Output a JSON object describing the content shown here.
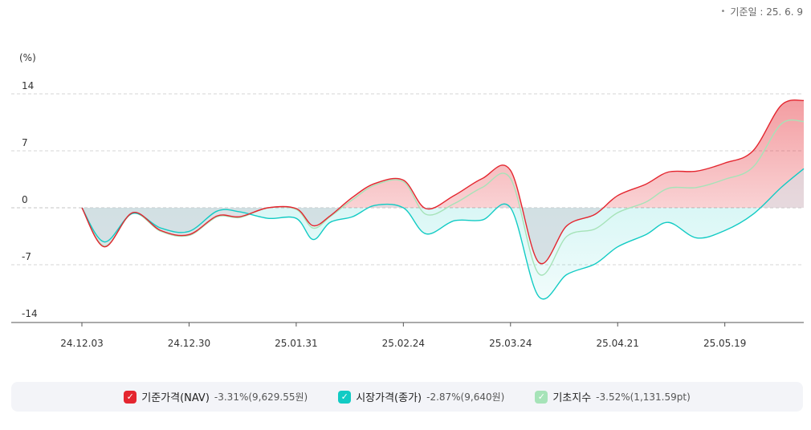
{
  "base_date": {
    "bullet": "•",
    "label": "기준일 : 25. 6. 9"
  },
  "legend": [
    {
      "name": "기준가격(NAV)",
      "value": "-3.31%(9,629.55원)",
      "color": "#e4262f",
      "icon": "check-icon"
    },
    {
      "name": "시장가격(종가)",
      "value": "-2.87%(9,640원)",
      "color": "#12cbc4",
      "icon": "check-icon"
    },
    {
      "name": "기초지수",
      "value": "-3.52%(1,131.59pt)",
      "color": "#a6e3b8",
      "icon": "check-icon"
    }
  ],
  "chart_data": {
    "type": "line",
    "ylabel": "(%)",
    "ylim": [
      -14,
      14
    ],
    "yticks": [
      "14",
      "7",
      "0",
      "-7",
      "-14"
    ],
    "ytick_values": [
      14,
      7,
      0,
      -7,
      -14
    ],
    "x_tick_labels": [
      "24.12.03",
      "24.12.30",
      "25.01.31",
      "25.02.24",
      "25.03.24",
      "25.04.21",
      "25.05.19"
    ],
    "x_tick_positions": [
      0,
      19,
      38,
      57,
      76,
      95,
      114
    ],
    "x_max": 128,
    "grid": "horizontal dashed",
    "series": [
      {
        "name": "기준가격(NAV)",
        "color": "#e4262f",
        "x": [
          0,
          4,
          9,
          14,
          19,
          24,
          28,
          33,
          38,
          41,
          44,
          48,
          52,
          57,
          61,
          66,
          71,
          76,
          81,
          86,
          91,
          95,
          100,
          104,
          109,
          114,
          119,
          124,
          128
        ],
        "y": [
          0,
          -4.8,
          -0.6,
          -2.8,
          -3.3,
          -1.0,
          -1.1,
          0.0,
          -0.1,
          -2.2,
          -1.0,
          1.3,
          3.0,
          3.4,
          -0.1,
          1.5,
          3.6,
          4.6,
          -6.7,
          -2.2,
          -0.8,
          1.5,
          2.9,
          4.4,
          4.5,
          5.5,
          7.0,
          12.6,
          13.2
        ]
      },
      {
        "name": "시장가격(종가)",
        "color": "#12cbc4",
        "x": [
          0,
          4,
          9,
          14,
          19,
          24,
          28,
          33,
          38,
          41,
          44,
          48,
          52,
          57,
          61,
          66,
          71,
          76,
          81,
          86,
          91,
          95,
          100,
          104,
          109,
          114,
          119,
          124,
          128
        ],
        "y": [
          0,
          -4.2,
          -0.7,
          -2.5,
          -2.9,
          -0.4,
          -0.5,
          -1.3,
          -1.3,
          -3.9,
          -1.8,
          -1.1,
          0.3,
          0.0,
          -3.2,
          -1.6,
          -1.5,
          0.0,
          -10.9,
          -8.2,
          -6.9,
          -4.8,
          -3.3,
          -1.8,
          -3.7,
          -2.8,
          -0.8,
          2.5,
          4.8
        ]
      },
      {
        "name": "기초지수",
        "color": "#a6e3b8",
        "x": [
          0,
          4,
          9,
          14,
          19,
          24,
          28,
          33,
          38,
          41,
          44,
          48,
          52,
          57,
          61,
          66,
          71,
          76,
          81,
          86,
          91,
          95,
          100,
          104,
          109,
          114,
          119,
          124,
          128
        ],
        "y": [
          0,
          -4.7,
          -0.7,
          -2.9,
          -3.4,
          -1.1,
          -1.2,
          0.0,
          -0.2,
          -2.5,
          -1.1,
          1.0,
          2.8,
          3.2,
          -0.8,
          0.5,
          2.5,
          3.6,
          -8.1,
          -3.5,
          -2.6,
          -0.6,
          0.7,
          2.4,
          2.5,
          3.5,
          5.0,
          10.3,
          10.6
        ]
      }
    ]
  }
}
